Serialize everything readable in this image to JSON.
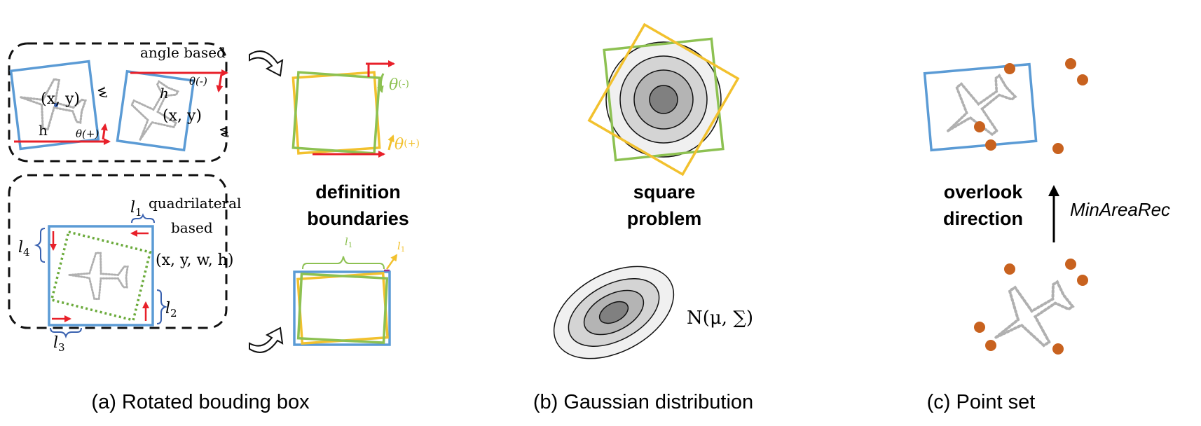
{
  "panel_a": {
    "angle_label": "angle based",
    "xy": "(x, y)",
    "w": "w",
    "h": "h",
    "theta_plus": "θ(+)",
    "theta_minus": "θ(-)",
    "quad_label_1": "quadrilateral",
    "quad_label_2": "based",
    "xywh": "(x, y, w, h)",
    "l1": "l",
    "l2": "l",
    "l3": "l",
    "l4": "l",
    "sub1": "1",
    "sub2": "2",
    "sub3": "3",
    "sub4": "4",
    "def_title_1": "definition",
    "def_title_2": "boundaries",
    "theta_neg_green": "θ",
    "theta_neg_green_sup": "(-)",
    "theta_pos_yellow": "θ",
    "theta_pos_yellow_sup": "(+)",
    "l1_green": "l",
    "l1_green_sub": "1",
    "l1_yellow": "l",
    "l1_yellow_sub": "1",
    "caption": "(a) Rotated bouding box"
  },
  "panel_b": {
    "title_1": "square",
    "title_2": "problem",
    "gaussian_label": "N(μ, ∑)",
    "caption": "(b) Gaussian distribution"
  },
  "panel_c": {
    "title_1": "overlook",
    "title_2": "direction",
    "arrow_label": "MinAreaRec",
    "caption": "(c) Point set"
  },
  "colors": {
    "blue": "#5b9bd5",
    "green": "#8dc152",
    "yellow": "#f2c12e",
    "red": "#e8202a",
    "orange_dot": "#c8621f",
    "plane": "#b0b0b0"
  }
}
